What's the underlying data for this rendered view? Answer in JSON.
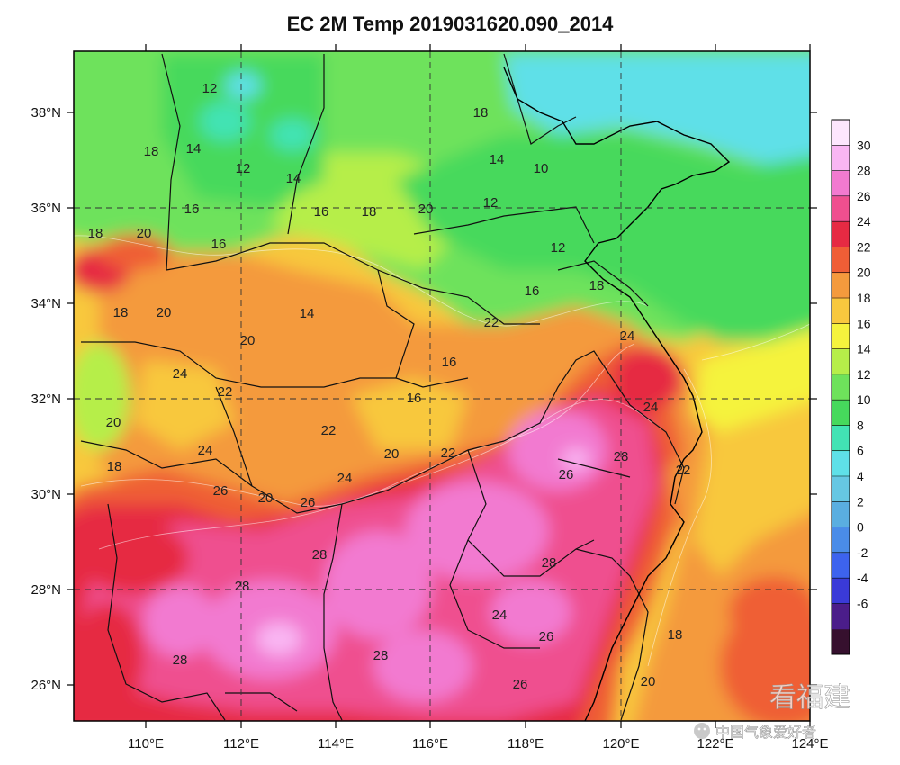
{
  "title": "EC 2M Temp 2019031620.090_2014",
  "map": {
    "lon_ticks": [
      "110°E",
      "112°E",
      "114°E",
      "116°E",
      "118°E",
      "120°E",
      "122°E",
      "124°E"
    ],
    "lat_ticks": [
      "38°N",
      "36°N",
      "34°N",
      "32°N",
      "30°N",
      "28°N",
      "26°N"
    ],
    "gridlines": "dashed",
    "contour_labels": [
      "12",
      "14",
      "18",
      "16",
      "12",
      "14",
      "16",
      "18",
      "18",
      "10",
      "12",
      "14",
      "12",
      "16",
      "18",
      "20",
      "20",
      "18",
      "18",
      "20",
      "14",
      "22",
      "16",
      "20",
      "20",
      "24",
      "16",
      "16",
      "22",
      "22",
      "20",
      "18",
      "24",
      "22",
      "24",
      "26",
      "20",
      "26",
      "24",
      "28",
      "24",
      "28",
      "22",
      "26",
      "28",
      "28",
      "24",
      "26",
      "28",
      "28",
      "26",
      "18",
      "20"
    ]
  },
  "legend": {
    "labels": [
      "30",
      "28",
      "26",
      "24",
      "22",
      "20",
      "18",
      "16",
      "14",
      "12",
      "10",
      "8",
      "6",
      "4",
      "2",
      "0",
      "-2",
      "-4",
      "-6"
    ],
    "colors": [
      "#36102e",
      "#4b1d8a",
      "#3a3ad8",
      "#3d63ee",
      "#4a8ce8",
      "#5aaee0",
      "#66c7e3",
      "#5fe0e8",
      "#42e3b4",
      "#46d95c",
      "#6ee25b",
      "#b6ee49",
      "#f5f33d",
      "#f8c83e",
      "#f49a3d",
      "#ef5e36",
      "#e62a43",
      "#ef4f8f",
      "#f27ad0",
      "#f9b6f3",
      "#fde6fd"
    ]
  },
  "watermark": {
    "main": "看福建",
    "sub": "中国气象爱好者"
  }
}
